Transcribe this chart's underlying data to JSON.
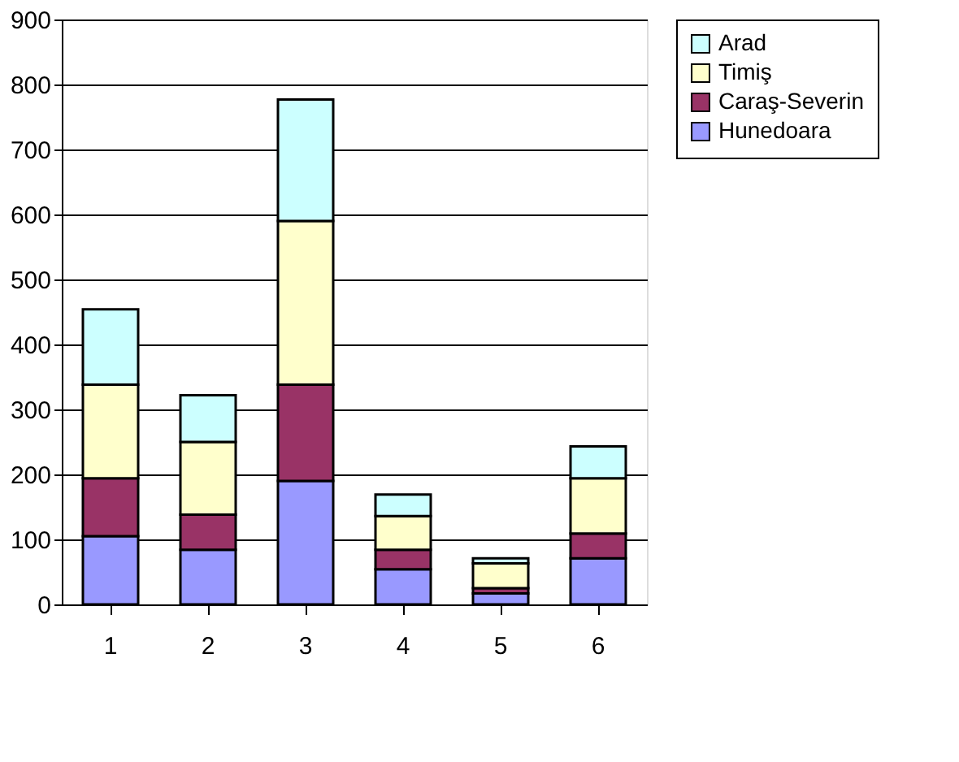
{
  "chart_data": {
    "type": "bar",
    "stacked": true,
    "categories": [
      "1",
      "2",
      "3",
      "4",
      "5",
      "6"
    ],
    "series": [
      {
        "name": "Hunedoara",
        "color": "#9999ff",
        "values": [
          105,
          84,
          190,
          54,
          17,
          71
        ]
      },
      {
        "name": "Caraş-Severin",
        "color": "#993366",
        "values": [
          89,
          54,
          148,
          30,
          8,
          38
        ]
      },
      {
        "name": "Timiş",
        "color": "#ffffcc",
        "values": [
          144,
          112,
          252,
          52,
          38,
          85
        ]
      },
      {
        "name": "Arad",
        "color": "#ccffff",
        "values": [
          116,
          72,
          187,
          33,
          8,
          49
        ]
      }
    ],
    "ylim": [
      0,
      900
    ],
    "yticks": [
      0,
      100,
      200,
      300,
      400,
      500,
      600,
      700,
      800,
      900
    ],
    "grid": "y",
    "legend": "right"
  }
}
